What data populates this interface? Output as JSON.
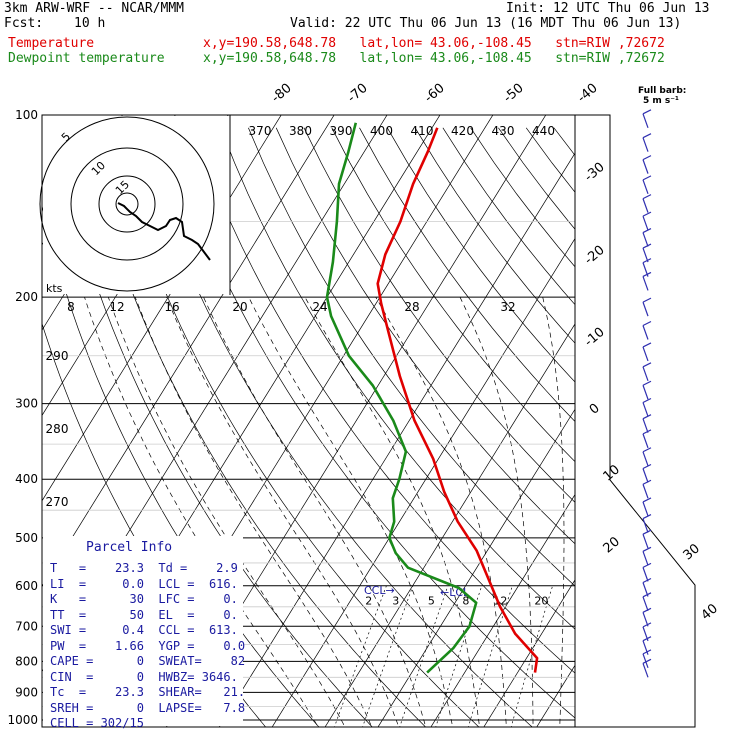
{
  "header": {
    "model": "3km ARW-WRF -- NCAR/MMM",
    "init": "Init: 12 UTC Thu 06 Jun 13",
    "fcst_label": "Fcst:",
    "fcst_value": "10 h",
    "valid": "Valid: 22 UTC Thu 06 Jun 13 (16 MDT Thu 06 Jun 13)",
    "temp_label": "Temperature",
    "dew_label": "Dewpoint temperature",
    "location": "x,y=190.58,648.78   lat,lon= 43.06,-108.45   stn=RIW ,72672"
  },
  "colors": {
    "temperature": "#e00000",
    "dewpoint": "#1a8a1a",
    "wind_barb": "#3030b0",
    "parcel_text": "#1a1aa0"
  },
  "chart_data": {
    "type": "line",
    "title": "",
    "ylabel": "",
    "y_scale": "log-pressure",
    "pressure_levels": [
      100,
      200,
      300,
      400,
      500,
      600,
      700,
      800,
      900,
      1000
    ],
    "pressure_tick_labels": [
      "100",
      "200",
      "300",
      "400",
      "500",
      "600",
      "700",
      "800",
      "900",
      "1000"
    ],
    "skewed_temperature_labels": [
      "-80",
      "-70",
      "-60",
      "-50",
      "-40",
      "-30",
      "-20",
      "-10",
      "0",
      "10",
      "20",
      "30",
      "40"
    ],
    "theta_labels": [
      "370",
      "380",
      "390",
      "400",
      "410",
      "420",
      "430",
      "440"
    ],
    "left_theta_labels": [
      "290",
      "280",
      "270"
    ],
    "mixing_ratio_labels": [
      "2",
      "3",
      "5",
      "8",
      "12",
      "20"
    ],
    "hodograph_speed_labels": [
      "8",
      "12",
      "16",
      "20",
      "24",
      "28",
      "32"
    ],
    "hodograph_ring_labels": [
      "5",
      "10",
      "15"
    ],
    "hodograph_unit": "kts",
    "full_barb_label": "Full barb:",
    "full_barb_value": "5 m s⁻¹",
    "lcl_label": "LCL",
    "ccl_label": "CCL",
    "series": [
      {
        "name": "Temperature",
        "pressure": [
          835,
          790,
          720,
          650,
          590,
          525,
          470,
          420,
          370,
          320,
          270,
          230,
          205,
          190,
          170,
          150,
          130,
          115,
          105
        ],
        "temperature_c": [
          23.3,
          22,
          15,
          9,
          4,
          -2,
          -9,
          -15,
          -21,
          -29,
          -37,
          -44,
          -49,
          -52,
          -54,
          -55,
          -57,
          -58,
          -59
        ]
      },
      {
        "name": "Dewpoint temperature",
        "pressure": [
          835,
          760,
          700,
          640,
          605,
          560,
          530,
          500,
          470,
          430,
          400,
          360,
          320,
          280,
          250,
          215,
          200,
          175,
          150,
          130,
          115,
          103
        ],
        "temperature_c": [
          2.9,
          5,
          5.5,
          4,
          -1,
          -13,
          -17,
          -20,
          -21,
          -24,
          -25,
          -27,
          -33,
          -41,
          -49,
          -57,
          -60,
          -63,
          -67,
          -71,
          -73,
          -75
        ]
      }
    ],
    "wind_barb_pressures": [
      105,
      115,
      125,
      135,
      145,
      155,
      165,
      175,
      185,
      195,
      215,
      235,
      255,
      275,
      295,
      315,
      335,
      355,
      380,
      405,
      430,
      460,
      490,
      520,
      555,
      590,
      625,
      660,
      700,
      740,
      780,
      820,
      850
    ]
  },
  "parcel_info": {
    "title": "Parcel Info",
    "rows": [
      "T   =    23.3  Td =    2.9",
      "LI  =     0.0  LCL =  616.",
      "K   =      30  LFC =    0.",
      "TT  =      50  EL  =    0.",
      "SWI =     0.4  CCL =  613.",
      "PW  =    1.66  YGP =    0.0",
      "CAPE =      0  SWEAT=    82",
      "CIN  =      0  HWBZ= 3646.",
      "Tc  =    23.3  SHEAR=   21.",
      "SREH =      0  LAPSE=   7.8",
      "CELL = 302/15"
    ]
  }
}
